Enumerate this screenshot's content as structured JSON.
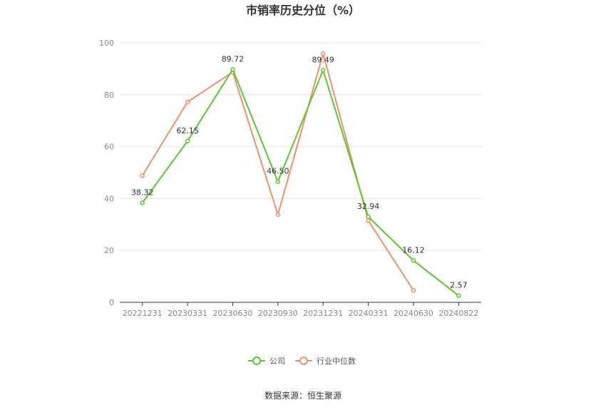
{
  "chart_data": {
    "type": "line",
    "title": "市销率历史分位（%）",
    "categories": [
      "20221231",
      "20230331",
      "20230630",
      "20230930",
      "20231231",
      "20240331",
      "20240630",
      "20240822"
    ],
    "ylim": [
      0,
      100
    ],
    "yticks": [
      "0",
      "20",
      "40",
      "60",
      "80",
      "100"
    ],
    "grid": true,
    "legend_position": "bottom",
    "series": [
      {
        "name": "公司",
        "color": "#5ac82e",
        "values": [
          38.32,
          62.15,
          89.72,
          46.5,
          89.49,
          32.94,
          16.12,
          2.57
        ],
        "labels": [
          "38.32",
          "62.15",
          "89.72",
          "46.50",
          "89.49",
          "32.94",
          "16.12",
          "2.57"
        ]
      },
      {
        "name": "行业中位数",
        "color": "#f0906a",
        "values": [
          48.8,
          77.2,
          88.7,
          33.8,
          95.8,
          31.5,
          4.6,
          null
        ]
      }
    ],
    "source": "数据来源：恒生聚源"
  }
}
